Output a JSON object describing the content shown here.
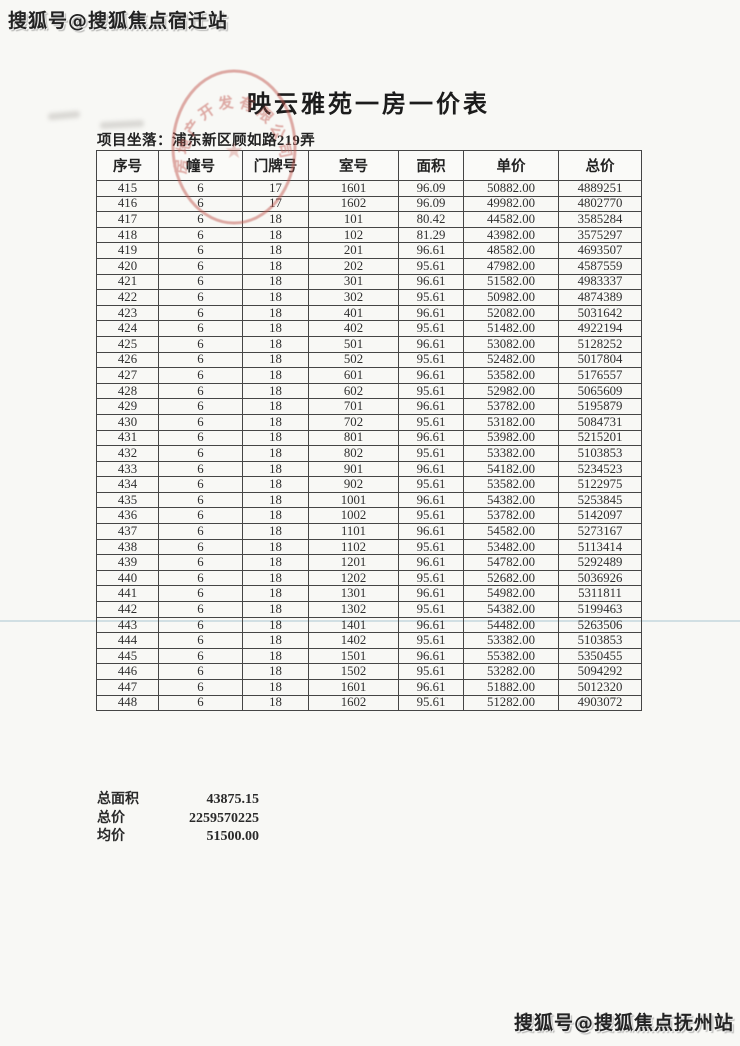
{
  "watermarks": {
    "top": "搜狐号@搜狐焦点宿迁站",
    "bottom": "搜狐号@搜狐焦点抚州站"
  },
  "title": "映云雅苑一房一价表",
  "location": {
    "label": "项目坐落：",
    "value": "浦东新区顾如路219弄"
  },
  "stamp": {
    "arc_text": "房地产开发有限公司",
    "center_glyph": "★",
    "color": "#c25a52"
  },
  "table": {
    "headers": [
      "序号",
      "幢号",
      "门牌号",
      "室号",
      "面积",
      "单价",
      "总价"
    ],
    "rows": [
      [
        "415",
        "6",
        "17",
        "1601",
        "96.09",
        "50882.00",
        "4889251"
      ],
      [
        "416",
        "6",
        "17",
        "1602",
        "96.09",
        "49982.00",
        "4802770"
      ],
      [
        "417",
        "6",
        "18",
        "101",
        "80.42",
        "44582.00",
        "3585284"
      ],
      [
        "418",
        "6",
        "18",
        "102",
        "81.29",
        "43982.00",
        "3575297"
      ],
      [
        "419",
        "6",
        "18",
        "201",
        "96.61",
        "48582.00",
        "4693507"
      ],
      [
        "420",
        "6",
        "18",
        "202",
        "95.61",
        "47982.00",
        "4587559"
      ],
      [
        "421",
        "6",
        "18",
        "301",
        "96.61",
        "51582.00",
        "4983337"
      ],
      [
        "422",
        "6",
        "18",
        "302",
        "95.61",
        "50982.00",
        "4874389"
      ],
      [
        "423",
        "6",
        "18",
        "401",
        "96.61",
        "52082.00",
        "5031642"
      ],
      [
        "424",
        "6",
        "18",
        "402",
        "95.61",
        "51482.00",
        "4922194"
      ],
      [
        "425",
        "6",
        "18",
        "501",
        "96.61",
        "53082.00",
        "5128252"
      ],
      [
        "426",
        "6",
        "18",
        "502",
        "95.61",
        "52482.00",
        "5017804"
      ],
      [
        "427",
        "6",
        "18",
        "601",
        "96.61",
        "53582.00",
        "5176557"
      ],
      [
        "428",
        "6",
        "18",
        "602",
        "95.61",
        "52982.00",
        "5065609"
      ],
      [
        "429",
        "6",
        "18",
        "701",
        "96.61",
        "53782.00",
        "5195879"
      ],
      [
        "430",
        "6",
        "18",
        "702",
        "95.61",
        "53182.00",
        "5084731"
      ],
      [
        "431",
        "6",
        "18",
        "801",
        "96.61",
        "53982.00",
        "5215201"
      ],
      [
        "432",
        "6",
        "18",
        "802",
        "95.61",
        "53382.00",
        "5103853"
      ],
      [
        "433",
        "6",
        "18",
        "901",
        "96.61",
        "54182.00",
        "5234523"
      ],
      [
        "434",
        "6",
        "18",
        "902",
        "95.61",
        "53582.00",
        "5122975"
      ],
      [
        "435",
        "6",
        "18",
        "1001",
        "96.61",
        "54382.00",
        "5253845"
      ],
      [
        "436",
        "6",
        "18",
        "1002",
        "95.61",
        "53782.00",
        "5142097"
      ],
      [
        "437",
        "6",
        "18",
        "1101",
        "96.61",
        "54582.00",
        "5273167"
      ],
      [
        "438",
        "6",
        "18",
        "1102",
        "95.61",
        "53482.00",
        "5113414"
      ],
      [
        "439",
        "6",
        "18",
        "1201",
        "96.61",
        "54782.00",
        "5292489"
      ],
      [
        "440",
        "6",
        "18",
        "1202",
        "95.61",
        "52682.00",
        "5036926"
      ],
      [
        "441",
        "6",
        "18",
        "1301",
        "96.61",
        "54982.00",
        "5311811"
      ],
      [
        "442",
        "6",
        "18",
        "1302",
        "95.61",
        "54382.00",
        "5199463"
      ],
      [
        "443",
        "6",
        "18",
        "1401",
        "96.61",
        "54482.00",
        "5263506"
      ],
      [
        "444",
        "6",
        "18",
        "1402",
        "95.61",
        "53382.00",
        "5103853"
      ],
      [
        "445",
        "6",
        "18",
        "1501",
        "96.61",
        "55382.00",
        "5350455"
      ],
      [
        "446",
        "6",
        "18",
        "1502",
        "95.61",
        "53282.00",
        "5094292"
      ],
      [
        "447",
        "6",
        "18",
        "1601",
        "96.61",
        "51882.00",
        "5012320"
      ],
      [
        "448",
        "6",
        "18",
        "1602",
        "95.61",
        "51282.00",
        "4903072"
      ]
    ]
  },
  "summary": {
    "rows": [
      {
        "label": "总面积",
        "value": "43875.15"
      },
      {
        "label": "总价",
        "value": "2259570225"
      },
      {
        "label": "均价",
        "value": "51500.00"
      }
    ]
  },
  "colors": {
    "stamp_red": "#c25a52",
    "table_border": "#454545",
    "scan_artifact_line": "#96b9c8",
    "page_background": "#f8f8f5"
  }
}
